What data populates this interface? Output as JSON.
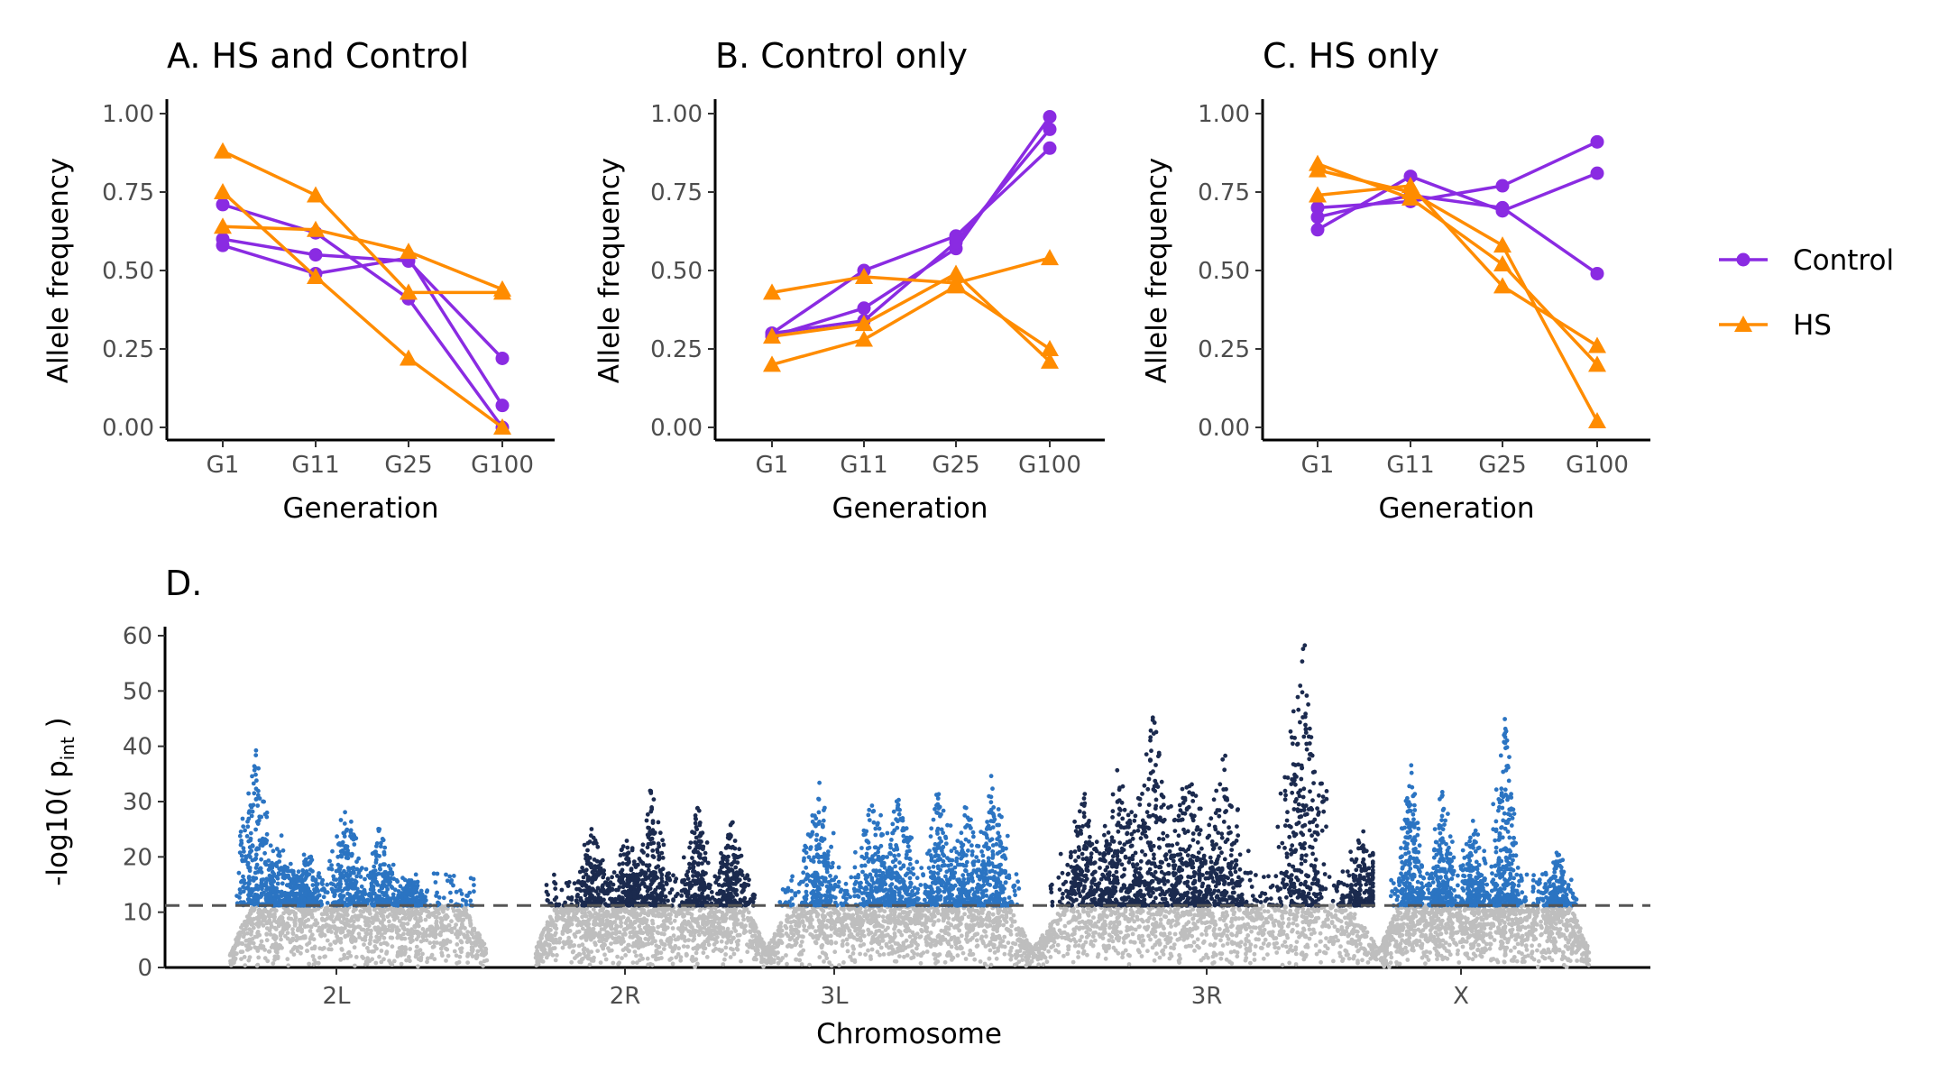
{
  "chart_data": [
    {
      "id": "A",
      "type": "line",
      "title": "A. HS and Control",
      "xlabel": "Generation",
      "ylabel": "Allele frequency",
      "categories": [
        "G1",
        "G11",
        "G25",
        "G100"
      ],
      "ylim": [
        0,
        1
      ],
      "yticks": [
        "0.00",
        "0.25",
        "0.50",
        "0.75",
        "1.00"
      ],
      "series": [
        {
          "group": "Control",
          "values": [
            0.71,
            0.62,
            0.41,
            0.0
          ]
        },
        {
          "group": "Control",
          "values": [
            0.6,
            0.55,
            0.53,
            0.22
          ]
        },
        {
          "group": "Control",
          "values": [
            0.58,
            0.49,
            0.54,
            0.07
          ]
        },
        {
          "group": "HS",
          "values": [
            0.88,
            0.74,
            0.43,
            0.43
          ]
        },
        {
          "group": "HS",
          "values": [
            0.75,
            0.48,
            0.22,
            0.0
          ]
        },
        {
          "group": "HS",
          "values": [
            0.64,
            0.63,
            0.56,
            0.44
          ]
        }
      ]
    },
    {
      "id": "B",
      "type": "line",
      "title": "B. Control only",
      "xlabel": "Generation",
      "ylabel": "Allele frequency",
      "categories": [
        "G1",
        "G11",
        "G25",
        "G100"
      ],
      "ylim": [
        0,
        1
      ],
      "yticks": [
        "0.00",
        "0.25",
        "0.50",
        "0.75",
        "1.00"
      ],
      "series": [
        {
          "group": "Control",
          "values": [
            0.3,
            0.5,
            0.61,
            0.89
          ]
        },
        {
          "group": "Control",
          "values": [
            0.29,
            0.38,
            0.57,
            0.99
          ]
        },
        {
          "group": "Control",
          "values": [
            0.3,
            0.34,
            0.59,
            0.95
          ]
        },
        {
          "group": "HS",
          "values": [
            0.43,
            0.48,
            0.46,
            0.54
          ]
        },
        {
          "group": "HS",
          "values": [
            0.29,
            0.33,
            0.49,
            0.21
          ]
        },
        {
          "group": "HS",
          "values": [
            0.2,
            0.28,
            0.45,
            0.25
          ]
        }
      ]
    },
    {
      "id": "C",
      "type": "line",
      "title": "C. HS only",
      "xlabel": "Generation",
      "ylabel": "Allele frequency",
      "categories": [
        "G1",
        "G11",
        "G25",
        "G100"
      ],
      "ylim": [
        0,
        1
      ],
      "yticks": [
        "0.00",
        "0.25",
        "0.50",
        "0.75",
        "1.00"
      ],
      "series": [
        {
          "group": "Control",
          "values": [
            0.7,
            0.72,
            0.77,
            0.91
          ]
        },
        {
          "group": "Control",
          "values": [
            0.67,
            0.74,
            0.7,
            0.49
          ]
        },
        {
          "group": "Control",
          "values": [
            0.63,
            0.8,
            0.69,
            0.81
          ]
        },
        {
          "group": "HS",
          "values": [
            0.84,
            0.73,
            0.52,
            0.2
          ]
        },
        {
          "group": "HS",
          "values": [
            0.82,
            0.75,
            0.58,
            0.02
          ]
        },
        {
          "group": "HS",
          "values": [
            0.74,
            0.77,
            0.45,
            0.26
          ]
        }
      ]
    },
    {
      "id": "D",
      "type": "scatter",
      "title": "D.",
      "xlabel": "Chromosome",
      "ylabel": "-log10( p",
      "ylabel_subscript": "int",
      "ylabel_suffix": " )",
      "ylim": [
        0,
        60
      ],
      "yticks": [
        "0",
        "10",
        "20",
        "30",
        "40",
        "50",
        "60"
      ],
      "threshold": 11.2,
      "chromosomes": [
        {
          "name": "2L",
          "size_mb": 23.5,
          "peaks": [
            [
              0.1,
              40
            ],
            [
              0.45,
              33
            ],
            [
              0.58,
              26
            ],
            [
              0.2,
              24
            ],
            [
              0.3,
              22
            ],
            [
              0.7,
              16
            ]
          ]
        },
        {
          "name": "2R",
          "size_mb": 21.1,
          "peaks": [
            [
              0.5,
              33
            ],
            [
              0.25,
              27
            ],
            [
              0.7,
              30
            ],
            [
              0.85,
              28
            ],
            [
              0.4,
              25
            ]
          ]
        },
        {
          "name": "3L",
          "size_mb": 24.5,
          "peaks": [
            [
              0.2,
              34
            ],
            [
              0.4,
              35
            ],
            [
              0.5,
              33
            ],
            [
              0.65,
              35
            ],
            [
              0.85,
              37
            ],
            [
              0.75,
              30
            ]
          ]
        },
        {
          "name": "3R",
          "size_mb": 32.1,
          "peaks": [
            [
              0.35,
              48
            ],
            [
              0.55,
              40
            ],
            [
              0.25,
              38
            ],
            [
              0.45,
              38
            ],
            [
              0.78,
              60
            ],
            [
              0.95,
              26
            ],
            [
              0.15,
              33
            ]
          ]
        },
        {
          "name": "X",
          "size_mb": 22.4,
          "peaks": [
            [
              0.15,
              37
            ],
            [
              0.3,
              33
            ],
            [
              0.6,
              48
            ],
            [
              0.45,
              29
            ],
            [
              0.85,
              22
            ]
          ]
        }
      ]
    }
  ],
  "legend": {
    "items": [
      {
        "label": "Control",
        "marker": "circle"
      },
      {
        "label": "HS",
        "marker": "triangle"
      }
    ]
  },
  "colors": {
    "Control": "#8a2be2",
    "HS": "#ff8c00",
    "chrom_dark": "#1b2a4e",
    "chrom_light": "#2b74c2",
    "nonsig": "#bebebe",
    "threshold": "#555555"
  }
}
